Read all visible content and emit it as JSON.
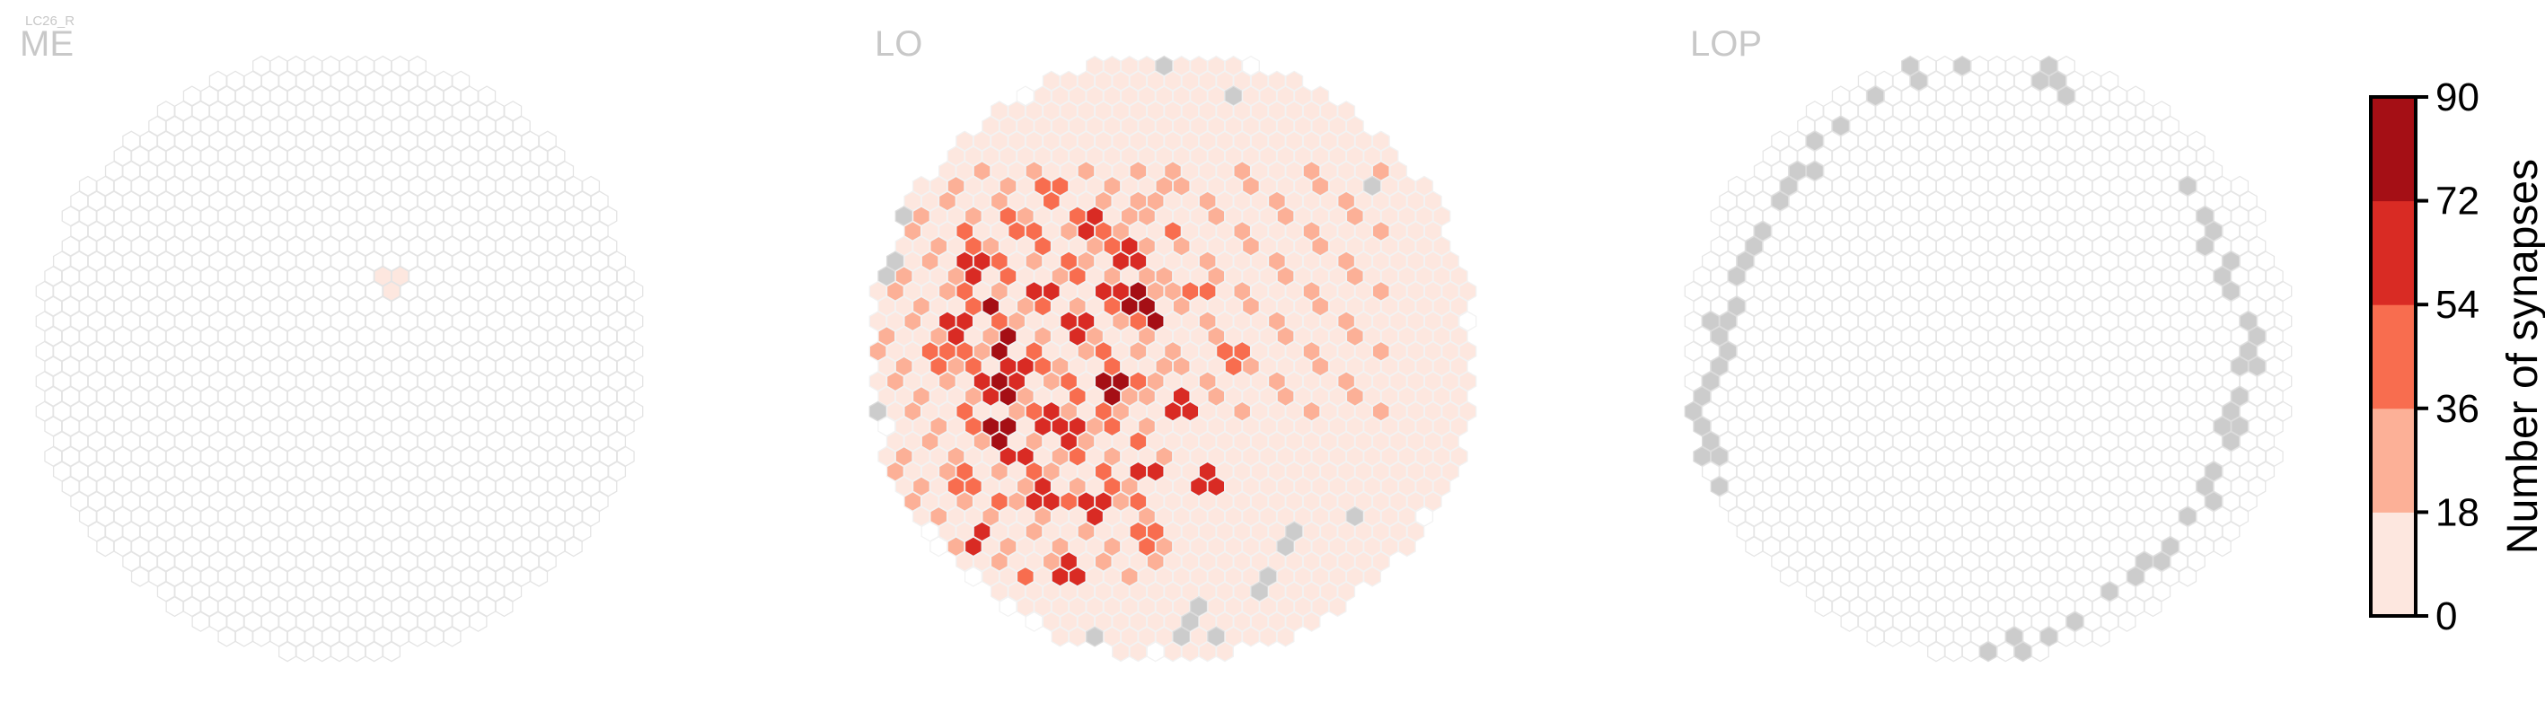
{
  "figure_label": "LC26_R",
  "chart_data": {
    "type": "heatmap",
    "subtype": "hexagonal-column-map",
    "panels": [
      {
        "title": "ME",
        "outline_color": "#e4e4e4",
        "no_data_color": "#cccccc",
        "hot_cells": [
          [
            0.587,
            0.38,
            6
          ]
        ],
        "gray_cells": []
      },
      {
        "title": "LO",
        "outline_color": "#f2f2f2",
        "no_data_color": "#cccccc",
        "hot_cells": [
          [
            0.17,
            0.36,
            62
          ],
          [
            0.2,
            0.42,
            82
          ],
          [
            0.22,
            0.48,
            88
          ],
          [
            0.25,
            0.52,
            70
          ],
          [
            0.19,
            0.55,
            60
          ],
          [
            0.21,
            0.62,
            84
          ],
          [
            0.25,
            0.66,
            62
          ],
          [
            0.3,
            0.6,
            56
          ],
          [
            0.35,
            0.45,
            66
          ],
          [
            0.4,
            0.55,
            86
          ],
          [
            0.44,
            0.42,
            75
          ],
          [
            0.43,
            0.35,
            60
          ],
          [
            0.47,
            0.45,
            72
          ],
          [
            0.36,
            0.3,
            55
          ],
          [
            0.3,
            0.25,
            50
          ],
          [
            0.52,
            0.58,
            66
          ],
          [
            0.28,
            0.72,
            58
          ],
          [
            0.18,
            0.78,
            66
          ],
          [
            0.16,
            0.7,
            50
          ],
          [
            0.55,
            0.7,
            60
          ],
          [
            0.33,
            0.84,
            68
          ],
          [
            0.12,
            0.5,
            52
          ],
          [
            0.14,
            0.45,
            58
          ],
          [
            0.28,
            0.4,
            62
          ],
          [
            0.33,
            0.62,
            64
          ],
          [
            0.46,
            0.68,
            58
          ],
          [
            0.6,
            0.5,
            46
          ],
          [
            0.37,
            0.73,
            56
          ],
          [
            0.45,
            0.78,
            50
          ],
          [
            0.24,
            0.3,
            48
          ],
          [
            0.5,
            0.3,
            44
          ],
          [
            0.55,
            0.4,
            50
          ],
          [
            0.26,
            0.85,
            44
          ],
          [
            0.4,
            0.4,
            62
          ],
          [
            0.22,
            0.56,
            78
          ]
        ],
        "gray_cells": [
          [
            0.487,
            0.045
          ],
          [
            0.595,
            0.09
          ],
          [
            0.835,
            0.23
          ],
          [
            0.06,
            0.28
          ],
          [
            0.035,
            0.36
          ],
          [
            0.01,
            0.6
          ],
          [
            0.025,
            0.73
          ],
          [
            0.795,
            0.755
          ],
          [
            0.695,
            0.79
          ],
          [
            0.655,
            0.86
          ],
          [
            0.545,
            0.9
          ],
          [
            0.37,
            0.93
          ],
          [
            0.24,
            0.955
          ],
          [
            0.28,
            0.985
          ],
          [
            0.315,
            0.985
          ],
          [
            0.43,
            0.985
          ],
          [
            0.52,
            0.93
          ],
          [
            0.575,
            0.945
          ]
        ]
      },
      {
        "title": "LOP",
        "outline_color": "#e6e6e6",
        "no_data_color": "#cccccc",
        "hot_cells": [],
        "gray_cells": [
          [
            0.46,
            0.03
          ],
          [
            0.53,
            0.03
          ],
          [
            0.59,
            0.06
          ],
          [
            0.62,
            0.08
          ],
          [
            0.38,
            0.06
          ],
          [
            0.31,
            0.1
          ],
          [
            0.26,
            0.14
          ],
          [
            0.22,
            0.17
          ],
          [
            0.2,
            0.21
          ],
          [
            0.17,
            0.23
          ],
          [
            0.16,
            0.26
          ],
          [
            0.13,
            0.3
          ],
          [
            0.11,
            0.34
          ],
          [
            0.09,
            0.38
          ],
          [
            0.08,
            0.42
          ],
          [
            0.06,
            0.45
          ],
          [
            0.06,
            0.48
          ],
          [
            0.05,
            0.52
          ],
          [
            0.04,
            0.55
          ],
          [
            0.025,
            0.6
          ],
          [
            0.035,
            0.63
          ],
          [
            0.045,
            0.66
          ],
          [
            0.045,
            0.7
          ],
          [
            0.05,
            0.73
          ],
          [
            0.05,
            0.76
          ],
          [
            0.06,
            0.8
          ],
          [
            0.08,
            0.83
          ],
          [
            0.11,
            0.86
          ],
          [
            0.14,
            0.89
          ],
          [
            0.17,
            0.92
          ],
          [
            0.21,
            0.94
          ],
          [
            0.25,
            0.96
          ],
          [
            0.3,
            0.97
          ],
          [
            0.35,
            0.98
          ],
          [
            0.4,
            0.985
          ],
          [
            0.45,
            0.98
          ],
          [
            0.5,
            0.97
          ],
          [
            0.55,
            0.955
          ],
          [
            0.6,
            0.935
          ],
          [
            0.65,
            0.91
          ],
          [
            0.7,
            0.88
          ],
          [
            0.74,
            0.85
          ],
          [
            0.77,
            0.82
          ],
          [
            0.8,
            0.79
          ],
          [
            0.83,
            0.76
          ],
          [
            0.86,
            0.72
          ],
          [
            0.88,
            0.68
          ],
          [
            0.89,
            0.64
          ],
          [
            0.9,
            0.6
          ],
          [
            0.92,
            0.56
          ],
          [
            0.93,
            0.52
          ],
          [
            0.94,
            0.48
          ],
          [
            0.93,
            0.44
          ],
          [
            0.91,
            0.4
          ],
          [
            0.89,
            0.36
          ],
          [
            0.87,
            0.32
          ],
          [
            0.85,
            0.28
          ],
          [
            0.83,
            0.24
          ]
        ]
      }
    ],
    "colorbar": {
      "label": "Number of synapses",
      "ticks": [
        0,
        18,
        36,
        54,
        72,
        90
      ],
      "range": [
        0,
        90
      ],
      "bin_colors": [
        "#fde7df",
        "#fcb097",
        "#f86d4f",
        "#d92b24",
        "#a50f15"
      ]
    }
  }
}
